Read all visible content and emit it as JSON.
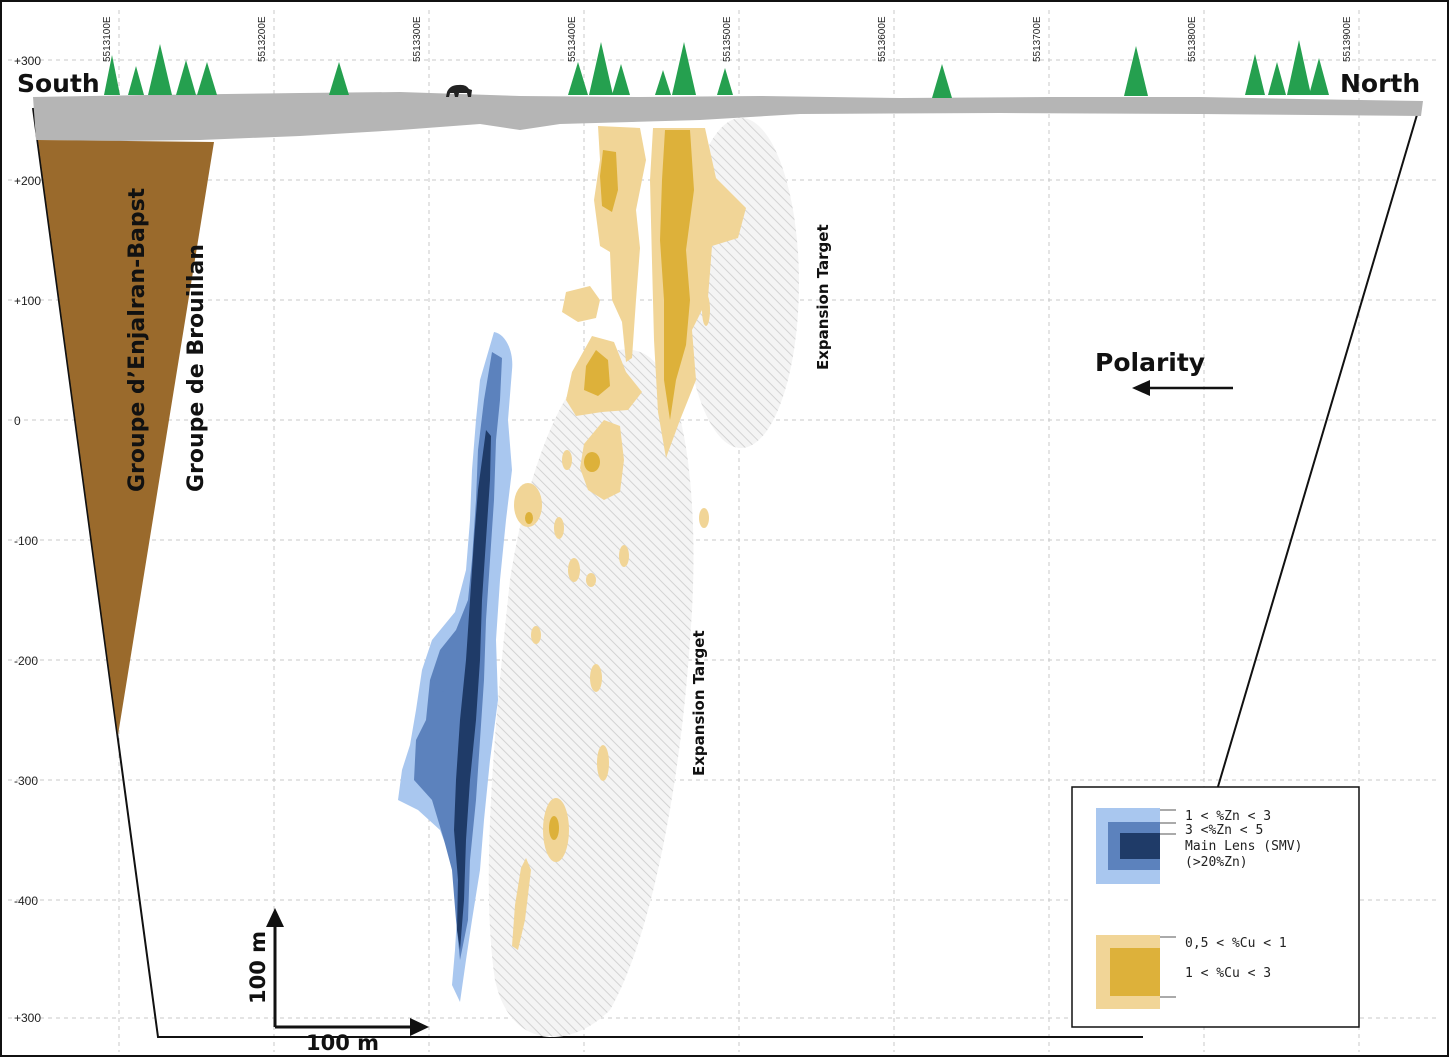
{
  "directions": {
    "south": "South",
    "north": "North"
  },
  "eastings": [
    "5513100E",
    "5513200E",
    "5513300E",
    "5513400E",
    "5513500E",
    "5513600E",
    "5513700E",
    "5513800E",
    "5513900E"
  ],
  "elevations": [
    "+300",
    "+200",
    "+100",
    "0",
    "-100",
    "-200",
    "-300",
    "-400",
    "+300"
  ],
  "groups": {
    "enjalran": "Groupe d’Enjalran-Bapst",
    "brouillan": "Groupe de Brouillan"
  },
  "targets": {
    "upper": "Expansion Target",
    "lower": "Expansion Target"
  },
  "polarity": "Polarity",
  "scale": {
    "vertical": "100 m",
    "horizontal": "100 m"
  },
  "legend": {
    "zinc": [
      "1 < %Zn < 3",
      "3 <%Zn < 5",
      "Main Lens (SMV)",
      "(>20%Zn)"
    ],
    "copper": [
      "0,5 < %Cu < 1",
      "1 < %Cu < 3"
    ]
  },
  "colors": {
    "zn_low": "#a9c7ef",
    "zn_mid": "#5c82bd",
    "zn_main": "#1f3b68",
    "cu_low": "#f1d597",
    "cu_high": "#ddb13a",
    "surface": "#b5b5b5",
    "group_fill": "#9a6a2c",
    "tree": "#25a04f"
  }
}
